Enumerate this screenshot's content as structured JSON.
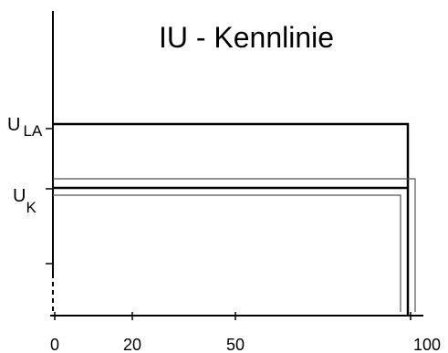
{
  "diagram": {
    "title": "IU - Kennlinie",
    "y_labels": {
      "u_la": {
        "main": "U",
        "sub": "LA"
      },
      "u_k": {
        "main": "U",
        "sub": "K"
      }
    },
    "x_ticks": [
      "0",
      "20",
      "50",
      "100"
    ]
  },
  "colors": {
    "line": "#000000",
    "outline": "#555555",
    "background": "#ffffff"
  }
}
